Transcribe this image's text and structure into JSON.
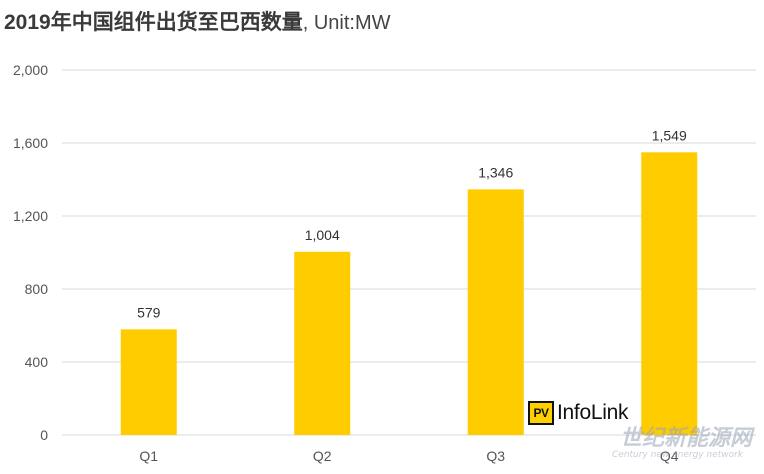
{
  "title": {
    "main": "2019年中国组件出货至巴西数量",
    "unit": ", Unit:MW"
  },
  "chart_data": {
    "type": "bar",
    "title": "2019年中国组件出货至巴西数量, Unit:MW",
    "categories": [
      "Q1",
      "Q2",
      "Q3",
      "Q4"
    ],
    "values": [
      579,
      1004,
      1346,
      1549
    ],
    "value_labels": [
      "579",
      "1,004",
      "1,346",
      "1,549"
    ],
    "y_ticks": [
      0,
      400,
      800,
      1200,
      1600,
      2000
    ],
    "y_tick_labels": [
      "0",
      "400",
      "800",
      "1,200",
      "1,600",
      "2,000"
    ],
    "ylim": [
      0,
      2000
    ],
    "grid": true,
    "legend": "none",
    "bar_color": "#ffcc00",
    "grid_color": "#d9d9d9"
  },
  "logo": {
    "badge": "PV",
    "text": "InfoLink"
  },
  "watermark": {
    "cn": "世纪新能源网",
    "en": "Century new energy network"
  }
}
